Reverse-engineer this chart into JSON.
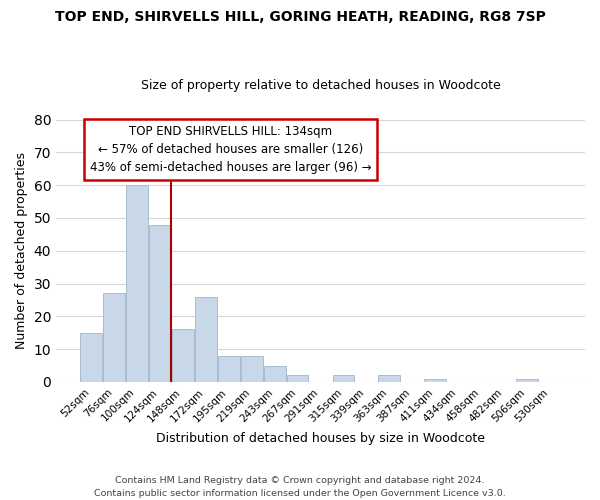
{
  "title": "TOP END, SHIRVELLS HILL, GORING HEATH, READING, RG8 7SP",
  "subtitle": "Size of property relative to detached houses in Woodcote",
  "xlabel": "Distribution of detached houses by size in Woodcote",
  "ylabel": "Number of detached properties",
  "bar_color": "#c8d8e8",
  "bar_edge_color": "#a8bece",
  "categories": [
    "52sqm",
    "76sqm",
    "100sqm",
    "124sqm",
    "148sqm",
    "172sqm",
    "195sqm",
    "219sqm",
    "243sqm",
    "267sqm",
    "291sqm",
    "315sqm",
    "339sqm",
    "363sqm",
    "387sqm",
    "411sqm",
    "434sqm",
    "458sqm",
    "482sqm",
    "506sqm",
    "530sqm"
  ],
  "values": [
    15,
    27,
    60,
    48,
    16,
    26,
    8,
    8,
    5,
    2,
    0,
    2,
    0,
    2,
    0,
    1,
    0,
    0,
    0,
    1,
    0
  ],
  "ylim": [
    0,
    80
  ],
  "yticks": [
    0,
    10,
    20,
    30,
    40,
    50,
    60,
    70,
    80
  ],
  "vline_index": 3.5,
  "vline_color": "#aa0000",
  "annotation_title": "TOP END SHIRVELLS HILL: 134sqm",
  "annotation_line1": "← 57% of detached houses are smaller (126)",
  "annotation_line2": "43% of semi-detached houses are larger (96) →",
  "annotation_box_color": "#ffffff",
  "annotation_box_edge": "#cc0000",
  "footer1": "Contains HM Land Registry data © Crown copyright and database right 2024.",
  "footer2": "Contains public sector information licensed under the Open Government Licence v3.0.",
  "background_color": "#ffffff",
  "grid_color": "#d0d8e0"
}
